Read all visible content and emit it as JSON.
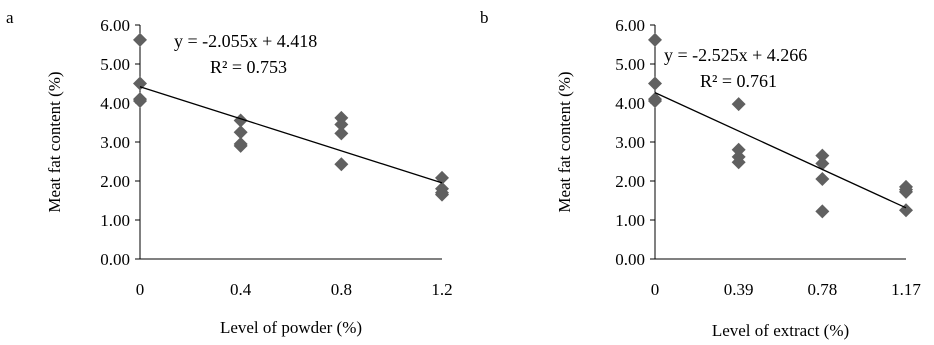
{
  "chart_data": [
    {
      "panel": "a",
      "type": "scatter",
      "xlabel": "Level of powder (%)",
      "ylabel": "Meat fat content (%)",
      "x_ticks": [
        "0",
        "0.4",
        "0.8",
        "1.2"
      ],
      "x_tick_values": [
        0,
        0.4,
        0.8,
        1.2
      ],
      "y_ticks": [
        "0.00",
        "1.00",
        "2.00",
        "3.00",
        "4.00",
        "5.00",
        "6.00"
      ],
      "y_tick_values": [
        0,
        1,
        2,
        3,
        4,
        5,
        6
      ],
      "xlim": [
        0,
        1.2
      ],
      "ylim": [
        0,
        6
      ],
      "grid": false,
      "marker_color": "#606060",
      "line_color": "#000000",
      "points": [
        {
          "x": 0,
          "y": 5.62
        },
        {
          "x": 0,
          "y": 4.5
        },
        {
          "x": 0,
          "y": 4.1
        },
        {
          "x": 0,
          "y": 4.05
        },
        {
          "x": 0.4,
          "y": 3.55
        },
        {
          "x": 0.4,
          "y": 3.25
        },
        {
          "x": 0.4,
          "y": 2.95
        },
        {
          "x": 0.4,
          "y": 2.9
        },
        {
          "x": 0.8,
          "y": 3.62
        },
        {
          "x": 0.8,
          "y": 3.45
        },
        {
          "x": 0.8,
          "y": 3.22
        },
        {
          "x": 0.8,
          "y": 2.43
        },
        {
          "x": 1.2,
          "y": 2.08
        },
        {
          "x": 1.2,
          "y": 1.8
        },
        {
          "x": 1.2,
          "y": 1.7
        },
        {
          "x": 1.2,
          "y": 1.65
        }
      ],
      "trendline": {
        "slope": -2.055,
        "intercept": 4.418
      },
      "equation": "y = -2.055x + 4.418",
      "r2": "R² = 0.753"
    },
    {
      "panel": "b",
      "type": "scatter",
      "xlabel": "Level of extract (%)",
      "ylabel": "Meat fat content (%)",
      "x_ticks": [
        "0",
        "0.39",
        "0.78",
        "1.17"
      ],
      "x_tick_values": [
        0,
        0.39,
        0.78,
        1.17
      ],
      "y_ticks": [
        "0.00",
        "1.00",
        "2.00",
        "3.00",
        "4.00",
        "5.00",
        "6.00"
      ],
      "y_tick_values": [
        0,
        1,
        2,
        3,
        4,
        5,
        6
      ],
      "xlim": [
        0,
        1.17
      ],
      "ylim": [
        0,
        6
      ],
      "grid": false,
      "marker_color": "#606060",
      "line_color": "#000000",
      "points": [
        {
          "x": 0,
          "y": 5.62
        },
        {
          "x": 0,
          "y": 4.5
        },
        {
          "x": 0,
          "y": 4.1
        },
        {
          "x": 0,
          "y": 4.05
        },
        {
          "x": 0.39,
          "y": 3.97
        },
        {
          "x": 0.39,
          "y": 2.8
        },
        {
          "x": 0.39,
          "y": 2.62
        },
        {
          "x": 0.39,
          "y": 2.48
        },
        {
          "x": 0.78,
          "y": 2.65
        },
        {
          "x": 0.78,
          "y": 2.45
        },
        {
          "x": 0.78,
          "y": 2.05
        },
        {
          "x": 0.78,
          "y": 1.22
        },
        {
          "x": 1.17,
          "y": 1.85
        },
        {
          "x": 1.17,
          "y": 1.78
        },
        {
          "x": 1.17,
          "y": 1.72
        },
        {
          "x": 1.17,
          "y": 1.25
        }
      ],
      "trendline": {
        "slope": -2.525,
        "intercept": 4.266
      },
      "equation": "y = -2.525x + 4.266",
      "r2": "R² = 0.761"
    }
  ],
  "panels": {
    "a": {
      "letter": "a"
    },
    "b": {
      "letter": "b"
    }
  }
}
